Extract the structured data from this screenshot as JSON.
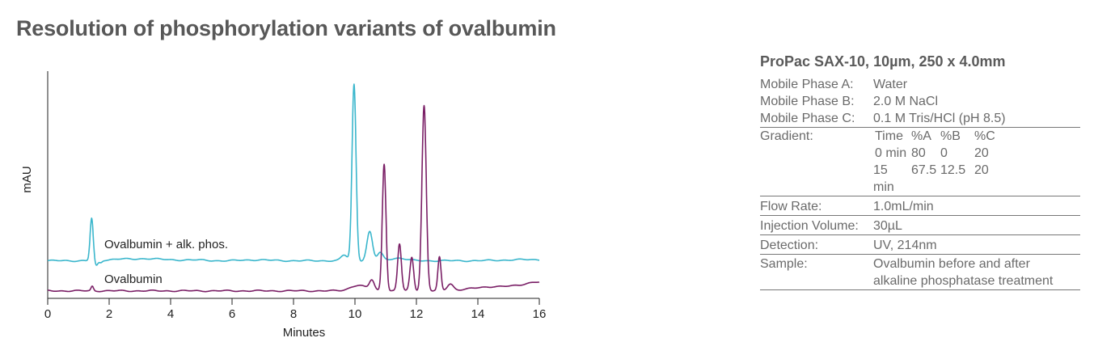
{
  "page": {
    "title": "Resolution of phosphorylation variants of ovalbumin"
  },
  "panel": {
    "title": "ProPac SAX-10, 10µm, 250 x 4.0mm",
    "mobile_a_label": "Mobile Phase A:",
    "mobile_a_value": "Water",
    "mobile_b_label": "Mobile Phase B:",
    "mobile_b_value": "2.0 M NaCl",
    "mobile_c_label": "Mobile Phase C:",
    "mobile_c_value": "0.1 M Tris/HCl (pH 8.5)",
    "gradient_label": "Gradient:",
    "gradient_header": [
      "Time",
      "%A",
      "%B",
      "%C"
    ],
    "gradient_rows": [
      [
        "0 min",
        "80",
        "0",
        "20"
      ],
      [
        "15 min",
        "67.5",
        "12.5",
        "20"
      ]
    ],
    "flow_label": "Flow Rate:",
    "flow_value": "1.0mL/min",
    "injection_label": "Injection Volume:",
    "injection_value": "30µL",
    "detection_label": "Detection:",
    "detection_value": "UV, 214nm",
    "sample_label": "Sample:",
    "sample_value_1": "Ovalbumin before and after",
    "sample_value_2": "alkaline phosphatase treatment"
  },
  "chart_data": {
    "type": "line",
    "xlabel": "Minutes",
    "ylabel": "mAU",
    "xlim": [
      0,
      16
    ],
    "x_ticks": [
      0,
      2,
      4,
      6,
      8,
      10,
      12,
      14,
      16
    ],
    "ylim": [
      0,
      100
    ],
    "series": [
      {
        "name": "Ovalbumin + alk. phos.",
        "color": "#3ab6cc",
        "baseline": 16.5,
        "peaks": [
          {
            "x": 1.43,
            "height": 19,
            "width": 0.05
          },
          {
            "x": 1.58,
            "height": -2.5,
            "width": 0.05
          },
          {
            "x": 1.72,
            "height": -1.0,
            "width": 0.05
          },
          {
            "x": 2.3,
            "height": 0.8,
            "width": 0.3
          },
          {
            "x": 3.3,
            "height": 1.0,
            "width": 0.4
          },
          {
            "x": 4.6,
            "height": 0.4,
            "width": 0.4
          },
          {
            "x": 6.8,
            "height": 0.4,
            "width": 0.4
          },
          {
            "x": 9.65,
            "height": 2.5,
            "width": 0.1
          },
          {
            "x": 9.97,
            "height": 79,
            "width": 0.065
          },
          {
            "x": 10.48,
            "height": 13,
            "width": 0.09
          },
          {
            "x": 10.82,
            "height": 3.5,
            "width": 0.09
          },
          {
            "x": 11.4,
            "height": 1.2,
            "width": 0.25
          }
        ],
        "tail_x": 14.0,
        "tail_height": 0.5
      },
      {
        "name": "Ovalbumin",
        "color": "#7a1f66",
        "baseline": 3.0,
        "peaks": [
          {
            "x": 1.45,
            "height": 2.0,
            "width": 0.04
          },
          {
            "x": 10.1,
            "height": 2.5,
            "width": 0.25
          },
          {
            "x": 10.55,
            "height": 4.5,
            "width": 0.08
          },
          {
            "x": 10.95,
            "height": 57,
            "width": 0.06
          },
          {
            "x": 11.45,
            "height": 21,
            "width": 0.06
          },
          {
            "x": 11.85,
            "height": 15,
            "width": 0.06
          },
          {
            "x": 12.25,
            "height": 83,
            "width": 0.07
          },
          {
            "x": 12.75,
            "height": 15,
            "width": 0.05
          },
          {
            "x": 13.1,
            "height": 3.0,
            "width": 0.1
          },
          {
            "x": 15.9,
            "height": 2.0,
            "width": 0.35
          }
        ],
        "tail_x": 13.0,
        "tail_height": 2.0
      }
    ]
  }
}
